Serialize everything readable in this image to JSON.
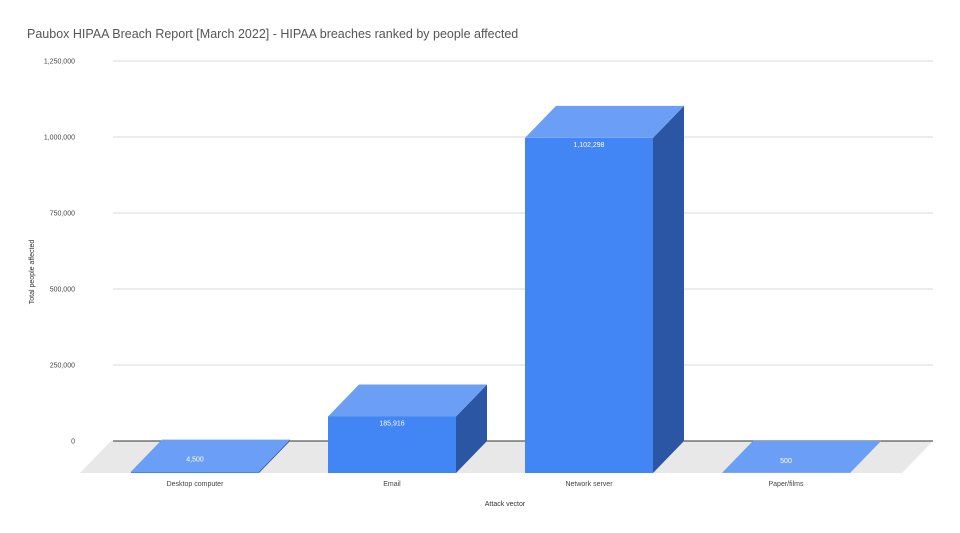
{
  "chart_data": {
    "type": "bar",
    "title": "Paubox HIPAA Breach Report [March 2022] - HIPAA breaches ranked by people affected",
    "xlabel": "Attack vector",
    "ylabel": "Total people affected",
    "categories": [
      "Desktop computer",
      "Email",
      "Network server",
      "Paper/films"
    ],
    "values": [
      4500,
      185916,
      1102298,
      500
    ],
    "data_labels": [
      "4,500",
      "185,916",
      "1,102,298",
      "500"
    ],
    "ylim": [
      0,
      1250000
    ],
    "yticks": [
      0,
      250000,
      500000,
      750000,
      1000000,
      1250000
    ],
    "ytick_labels": [
      "0",
      "250,000",
      "500,000",
      "750,000",
      "1,000,000",
      "1,250,000"
    ],
    "grid": true,
    "style": "3d",
    "colors": {
      "front": "#4285f4",
      "top": "#6b9ff5",
      "side": "#2a56a3",
      "floor": "#e8e8e8"
    }
  }
}
